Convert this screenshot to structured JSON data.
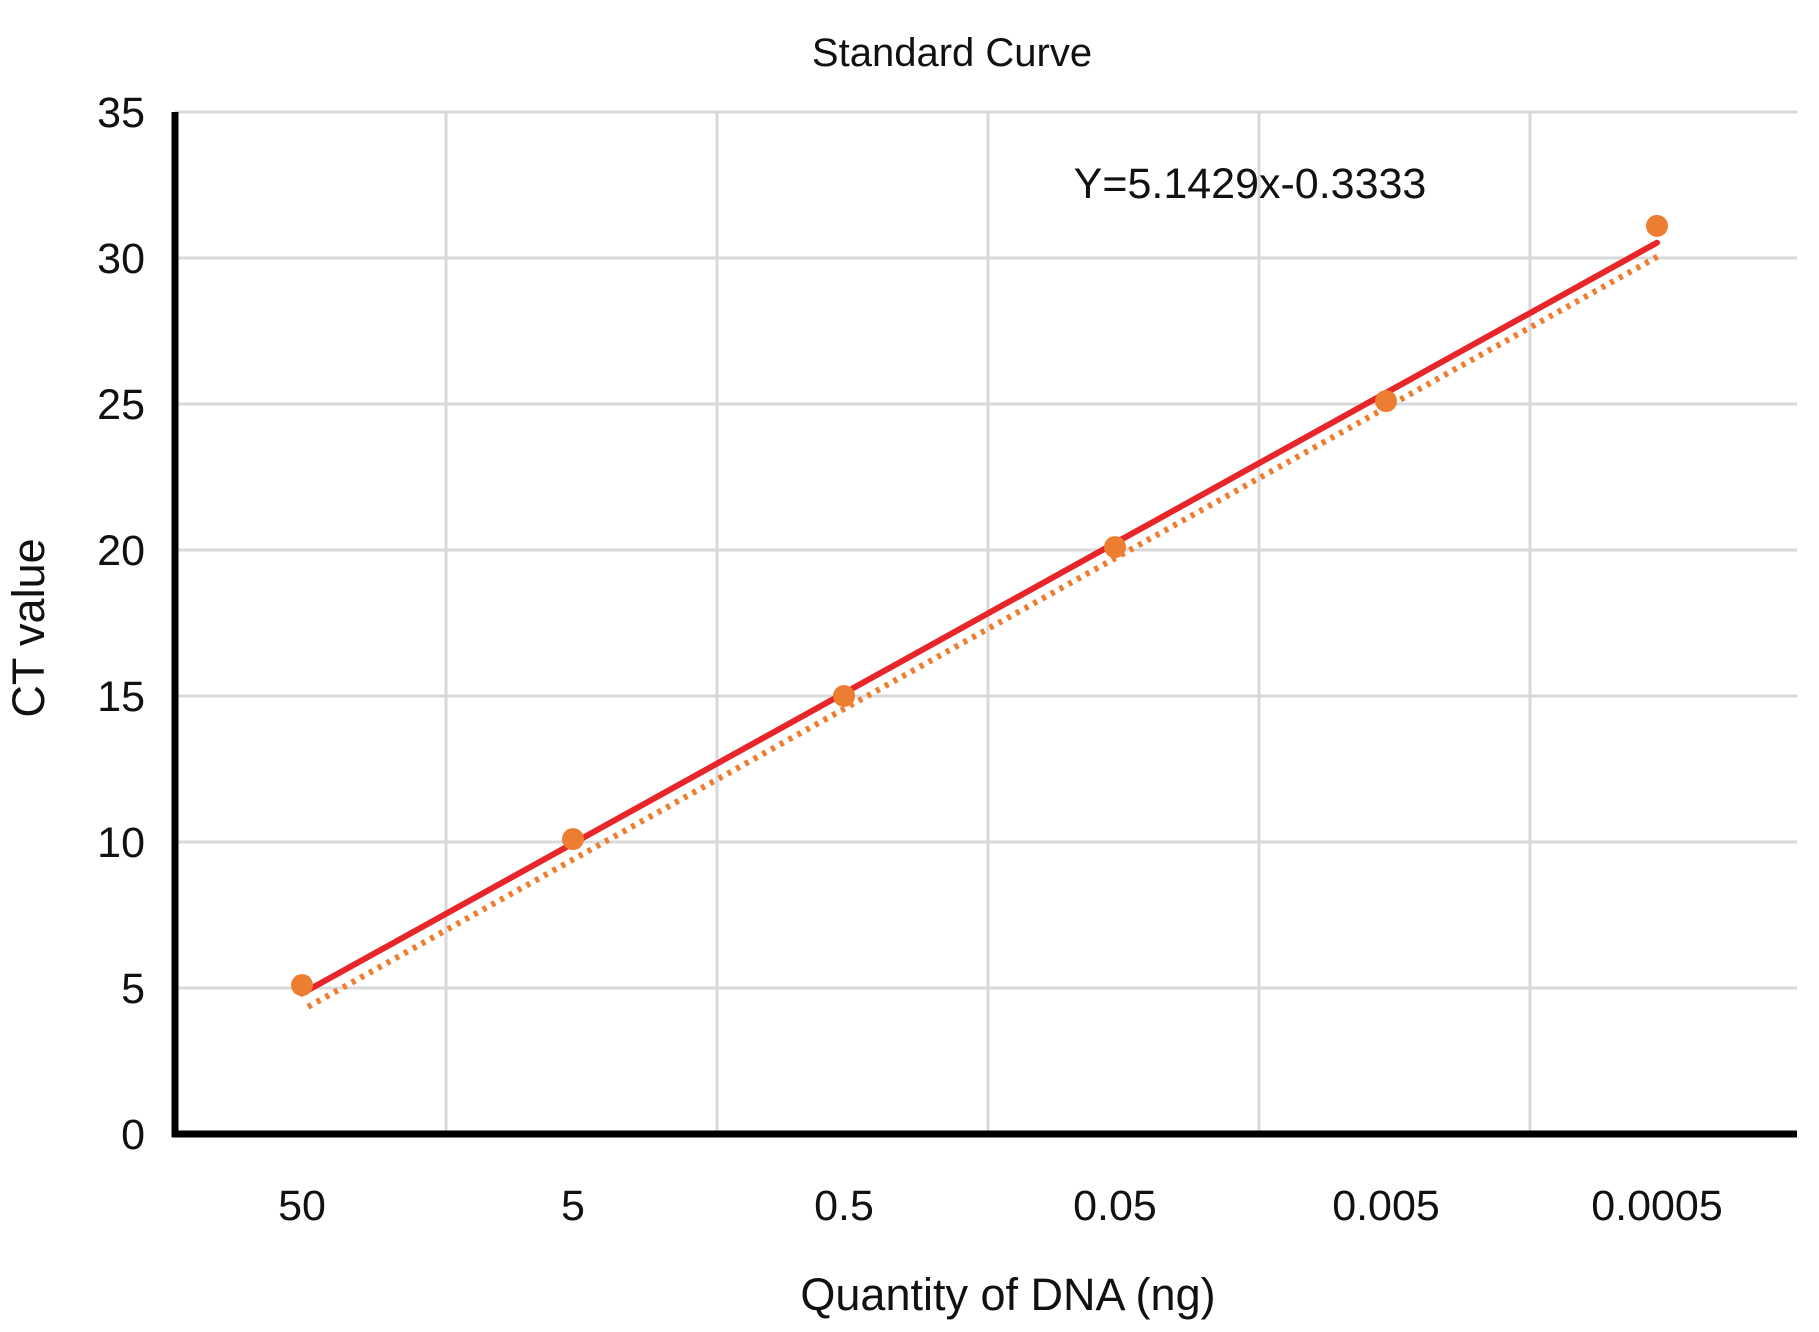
{
  "chart_data": {
    "type": "scatter",
    "title": "Standard Curve",
    "xlabel": "Quantity of DNA (ng)",
    "ylabel": "CT value",
    "categories": [
      "50",
      "5",
      "0.5",
      "0.05",
      "0.005",
      "0.0005"
    ],
    "series": [
      {
        "values": [
          5.1,
          10.1,
          15.0,
          20.1,
          25.1,
          31.1
        ],
        "color": "#ED7D31",
        "marker": "circle",
        "trendline": "dotted"
      }
    ],
    "fit_line": {
      "equation": "Y=5.1429x-0.3333",
      "slope": 5.1429,
      "intercept": -0.3333,
      "color": "#E8262A"
    },
    "ylim": [
      0,
      35
    ],
    "yticks": [
      0,
      5,
      10,
      15,
      20,
      25,
      30,
      35
    ],
    "grid": true,
    "legend": "none",
    "colors": {
      "gridline": "#d9d9d9",
      "axis": "#000000",
      "point": "#ED7D31",
      "fit": "#E8262A"
    }
  }
}
